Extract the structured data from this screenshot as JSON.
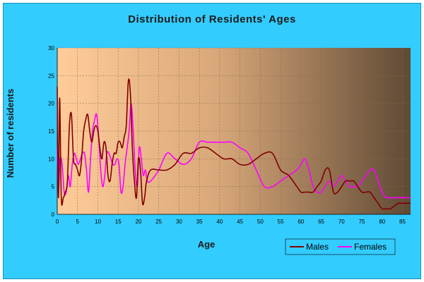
{
  "chart_data": {
    "type": "line",
    "title": "Distribution of Residents' Ages",
    "xlabel": "Age",
    "ylabel": "Number of residents",
    "xlim": [
      0,
      87
    ],
    "ylim": [
      0,
      30
    ],
    "x_ticks": [
      0,
      5,
      10,
      15,
      20,
      25,
      30,
      35,
      40,
      45,
      50,
      55,
      60,
      65,
      70,
      75,
      80,
      85
    ],
    "y_ticks": [
      0,
      5,
      10,
      15,
      20,
      25,
      30
    ],
    "grid": true,
    "legend_position": "bottom-right",
    "series": [
      {
        "name": "Males",
        "color": "#800000",
        "x": [
          0,
          0.3,
          0.6,
          1,
          1.5,
          2,
          2.5,
          3,
          3.5,
          4,
          4.5,
          5,
          5.5,
          6,
          6.5,
          7,
          7.5,
          8,
          8.5,
          9,
          9.5,
          10,
          10.5,
          11,
          11.5,
          12,
          12.5,
          13,
          13.5,
          14,
          14.5,
          15,
          15.5,
          16,
          16.5,
          17,
          17.5,
          18,
          18.5,
          19,
          19.5,
          20,
          20.5,
          21,
          21.5,
          22,
          23,
          25,
          27,
          29,
          31,
          33,
          35,
          37,
          39,
          41,
          43,
          45,
          47,
          49,
          51,
          53,
          55,
          57,
          59,
          60,
          61,
          62,
          63,
          64,
          65,
          66,
          67,
          68,
          69,
          70,
          71,
          72,
          73,
          74,
          75,
          76,
          77,
          78,
          79,
          80,
          81,
          82,
          83,
          84,
          85,
          86,
          87
        ],
        "y": [
          23,
          3,
          21,
          3,
          3,
          4,
          6,
          16,
          18,
          10,
          9,
          8,
          7,
          10,
          15,
          17,
          18,
          15,
          13,
          15,
          16,
          15,
          12,
          10,
          13,
          12,
          7,
          6,
          9,
          11,
          11,
          13,
          13,
          12,
          14,
          16,
          24,
          22,
          12,
          6,
          3,
          10,
          8,
          2,
          3,
          6,
          8,
          8,
          8,
          9,
          11,
          11,
          12,
          12,
          11,
          10,
          10,
          9,
          9,
          10,
          11,
          11,
          8,
          7,
          5,
          4,
          4,
          4,
          4,
          5,
          6,
          8,
          8,
          4,
          4,
          5,
          6,
          6,
          6,
          5,
          4,
          4,
          4,
          3,
          2,
          1,
          1,
          1,
          1.5,
          2,
          2,
          2,
          2
        ]
      },
      {
        "name": "Females",
        "color": "#ff00ff",
        "x": [
          0,
          0.3,
          0.7,
          1.2,
          1.7,
          2.2,
          2.7,
          3.2,
          3.7,
          4.2,
          4.7,
          5.2,
          5.7,
          6.2,
          6.7,
          7.2,
          7.7,
          8.2,
          8.7,
          9.2,
          9.7,
          10.2,
          10.7,
          11.2,
          11.7,
          12.2,
          12.7,
          13.2,
          13.7,
          14.2,
          14.7,
          15.2,
          15.7,
          16.2,
          16.7,
          17.2,
          17.7,
          18.2,
          18.7,
          19.2,
          19.7,
          20.2,
          20.7,
          21.2,
          21.7,
          22.2,
          23,
          25,
          27,
          29,
          31,
          33,
          35,
          37,
          39,
          41,
          43,
          45,
          47,
          49,
          51,
          53,
          55,
          57,
          59,
          60,
          61,
          62,
          63,
          64,
          65,
          66,
          67,
          68,
          69,
          70,
          71,
          72,
          73,
          74,
          75,
          76,
          77,
          78,
          79,
          80,
          81,
          82,
          83,
          84,
          85,
          86,
          87
        ],
        "y": [
          12,
          4,
          10,
          9,
          4,
          4,
          7,
          5,
          9,
          11,
          10,
          9,
          10,
          11,
          11,
          8,
          4,
          10,
          15,
          17,
          18,
          14,
          8,
          5,
          7,
          11,
          11,
          10,
          9,
          9,
          10,
          9,
          4,
          5,
          9,
          12,
          15,
          20,
          15,
          8,
          5,
          12,
          10,
          7,
          8,
          6,
          6,
          8,
          11,
          10,
          9,
          10,
          13,
          13,
          13,
          13,
          13,
          12,
          11,
          8,
          5,
          5,
          6,
          7,
          8,
          9,
          10,
          8,
          5,
          4,
          4,
          5,
          6,
          5,
          6,
          7,
          6,
          5,
          5,
          5,
          6,
          7,
          8,
          8,
          6,
          4,
          3,
          3,
          3,
          3,
          3,
          3,
          3
        ]
      }
    ]
  }
}
